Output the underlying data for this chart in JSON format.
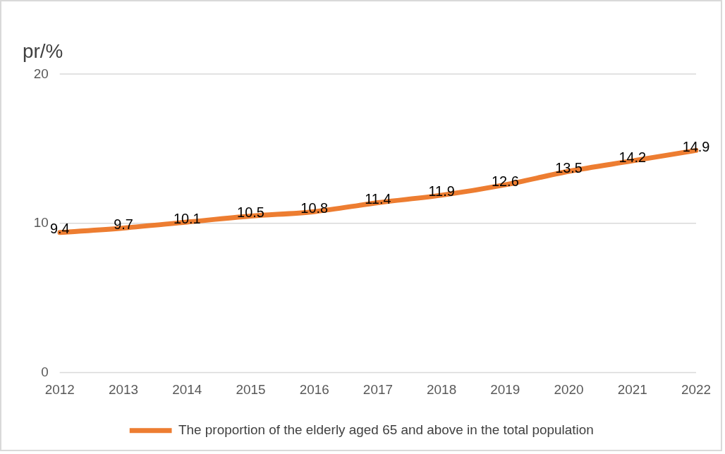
{
  "chart_data": {
    "type": "line",
    "ylabel": "pr/%",
    "categories": [
      "2012",
      "2013",
      "2014",
      "2015",
      "2016",
      "2017",
      "2018",
      "2019",
      "2020",
      "2021",
      "2022"
    ],
    "series": [
      {
        "name": "The proportion of the elderly aged 65 and above in the total population",
        "color": "#ed7d31",
        "values": [
          9.4,
          9.7,
          10.1,
          10.5,
          10.8,
          11.4,
          11.9,
          12.6,
          13.5,
          14.2,
          14.9
        ]
      }
    ],
    "ylim": [
      0,
      20
    ],
    "yticks": [
      0,
      10,
      20
    ],
    "grid": "y",
    "legend": "bottom",
    "data_labels": true,
    "marker": "none",
    "line_style": "solid"
  }
}
